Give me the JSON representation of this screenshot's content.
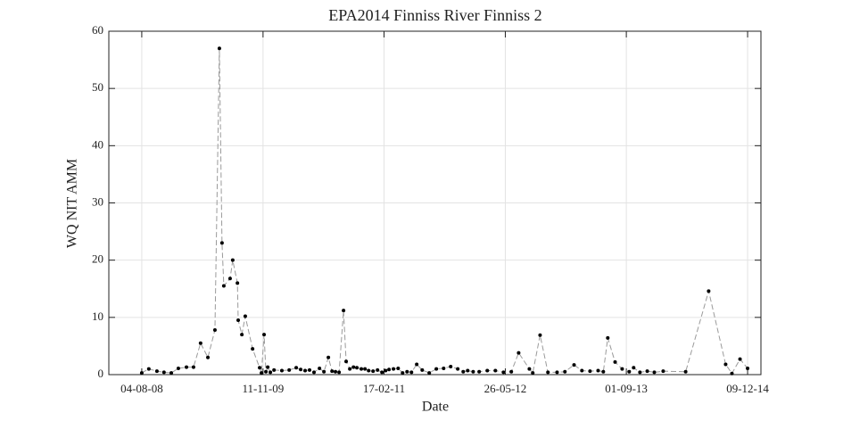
{
  "chart_data": {
    "type": "line",
    "title": "EPA2014 Finniss River Finniss 2",
    "x_label": "Date",
    "y_label": "WQ NIT AMM",
    "x": [
      "2008-08-04",
      "2008-08-31",
      "2008-10-01",
      "2008-10-28",
      "2008-11-25",
      "2008-12-22",
      "2009-01-22",
      "2009-02-18",
      "2009-03-17",
      "2009-04-14",
      "2009-05-11",
      "2009-05-28",
      "2009-06-07",
      "2009-06-14",
      "2009-07-08",
      "2009-07-18",
      "2009-08-05",
      "2009-08-08",
      "2009-08-22",
      "2009-09-04",
      "2009-10-02",
      "2009-10-29",
      "2009-11-05",
      "2009-11-15",
      "2009-11-22",
      "2009-11-29",
      "2009-12-09",
      "2009-12-23",
      "2010-01-22",
      "2010-02-19",
      "2010-03-18",
      "2010-04-04",
      "2010-04-21",
      "2010-05-08",
      "2010-05-25",
      "2010-06-15",
      "2010-07-02",
      "2010-07-19",
      "2010-08-02",
      "2010-08-15",
      "2010-08-29",
      "2010-09-15",
      "2010-09-25",
      "2010-10-09",
      "2010-10-23",
      "2010-11-05",
      "2010-11-22",
      "2010-12-06",
      "2010-12-20",
      "2011-01-06",
      "2011-01-23",
      "2011-02-09",
      "2011-02-23",
      "2011-03-08",
      "2011-03-25",
      "2011-04-12",
      "2011-04-29",
      "2011-05-16",
      "2011-06-02",
      "2011-06-22",
      "2011-07-13",
      "2011-08-09",
      "2011-09-05",
      "2011-10-03",
      "2011-10-30",
      "2011-11-26",
      "2011-12-17",
      "2012-01-03",
      "2012-01-24",
      "2012-02-16",
      "2012-03-18",
      "2012-04-18",
      "2012-05-19",
      "2012-06-18",
      "2012-07-16",
      "2012-08-26",
      "2012-09-08",
      "2012-10-06",
      "2012-11-05",
      "2012-12-10",
      "2013-01-09",
      "2013-02-13",
      "2013-03-15",
      "2013-04-15",
      "2013-05-16",
      "2013-06-05",
      "2013-06-22",
      "2013-07-20",
      "2013-08-16",
      "2013-09-12",
      "2013-09-29",
      "2013-10-23",
      "2013-11-20",
      "2013-12-17",
      "2014-01-20",
      "2014-04-16",
      "2014-07-13",
      "2014-09-16",
      "2014-10-10",
      "2014-11-10",
      "2014-12-09"
    ],
    "series": [
      {
        "color": "#000000",
        "values": [
          0.3,
          1.0,
          0.6,
          0.4,
          0.3,
          1.1,
          1.3,
          1.3,
          5.5,
          3.0,
          7.8,
          57,
          23,
          15.5,
          16.8,
          20,
          16,
          9.5,
          7,
          10.2,
          4.5,
          1.2,
          0.3,
          7,
          0.5,
          1.3,
          0.4,
          0.8,
          0.7,
          0.8,
          1.2,
          0.9,
          0.7,
          0.8,
          0.4,
          1.1,
          0.5,
          3.0,
          0.6,
          0.5,
          0.4,
          11.2,
          2.3,
          1.0,
          1.3,
          1.2,
          1.0,
          1.0,
          0.7,
          0.6,
          0.8,
          0.4,
          0.7,
          0.9,
          1.0,
          1.1,
          0.3,
          0.5,
          0.4,
          1.8,
          0.8,
          0.3,
          1.0,
          1.1,
          1.4,
          1.0,
          0.5,
          0.7,
          0.5,
          0.5,
          0.7,
          0.7,
          0.4,
          0.5,
          3.8,
          1.0,
          0.3,
          6.9,
          0.4,
          0.4,
          0.5,
          1.7,
          0.7,
          0.6,
          0.7,
          0.5,
          6.4,
          2.2,
          1.0,
          0.5,
          1.2,
          0.4,
          0.6,
          0.4,
          0.6,
          0.5,
          14.6,
          1.8,
          0.2,
          2.7,
          1.1
        ]
      }
    ],
    "line_color": "#9a9a9a",
    "xlim": [
      "2008-03-31",
      "2015-01-29"
    ],
    "xticks": [
      {
        "value": "2008-08-04",
        "label": "04-08-08"
      },
      {
        "value": "2009-11-11",
        "label": "11-11-09"
      },
      {
        "value": "2011-02-17",
        "label": "17-02-11"
      },
      {
        "value": "2012-05-26",
        "label": "26-05-12"
      },
      {
        "value": "2013-09-01",
        "label": "01-09-13"
      },
      {
        "value": "2014-12-09",
        "label": "09-12-14"
      }
    ],
    "ylim": [
      0,
      60
    ],
    "yticks": [
      0,
      10,
      20,
      30,
      40,
      50,
      60
    ],
    "grid": true
  }
}
